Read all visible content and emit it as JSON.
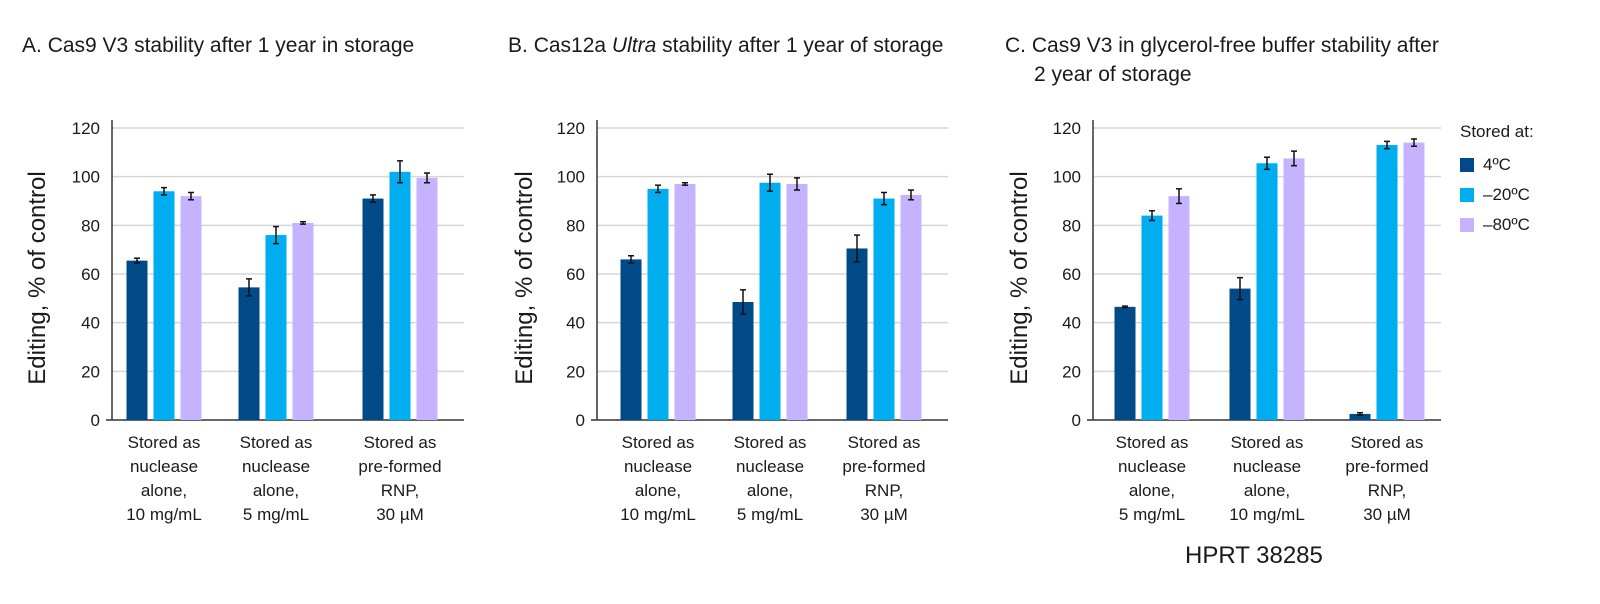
{
  "legend": {
    "title": "Stored at:",
    "items": [
      "4ºC",
      "–20ºC",
      "–80ºC"
    ],
    "colors": [
      "#004b87",
      "#00aeef",
      "#c5b3ff"
    ]
  },
  "footer_label": "HPRT 38285",
  "chart_data": [
    {
      "type": "bar",
      "title_letter": "A.",
      "title": "Cas9 V3 stability after 1 year in storage",
      "ylabel": "Editing, % of control",
      "ylim": [
        0,
        120
      ],
      "yticks": [
        0,
        20,
        40,
        60,
        80,
        100,
        120
      ],
      "grid": true,
      "categories": [
        [
          "Stored as",
          "nuclease",
          "alone,",
          "10 mg/mL"
        ],
        [
          "Stored as",
          "nuclease",
          "alone,",
          "5 mg/mL"
        ],
        [
          "Stored as",
          "pre-formed",
          "RNP,",
          "30 µM"
        ]
      ],
      "series": [
        {
          "name": "4ºC",
          "values": [
            65.5,
            54.5,
            91
          ],
          "errors": [
            1,
            3.5,
            1.5
          ]
        },
        {
          "name": "–20ºC",
          "values": [
            94,
            76,
            102
          ],
          "errors": [
            1.5,
            3.5,
            4.5
          ]
        },
        {
          "name": "–80ºC",
          "values": [
            92,
            81,
            99.5
          ],
          "errors": [
            1.5,
            0.5,
            2
          ]
        }
      ]
    },
    {
      "type": "bar",
      "title_letter": "B.",
      "title": "Cas12a",
      "title_italic": "Ultra",
      "title_rest": "stability after 1 year of storage",
      "ylabel": "Editing, % of control",
      "ylim": [
        0,
        120
      ],
      "yticks": [
        0,
        20,
        40,
        60,
        80,
        100,
        120
      ],
      "grid": true,
      "categories": [
        [
          "Stored as",
          "nuclease",
          "alone,",
          "10 mg/mL"
        ],
        [
          "Stored as",
          "nuclease",
          "alone,",
          "5 mg/mL"
        ],
        [
          "Stored as",
          "pre-formed",
          "RNP,",
          "30 µM"
        ]
      ],
      "series": [
        {
          "name": "4ºC",
          "values": [
            66,
            48.5,
            70.5
          ],
          "errors": [
            1.5,
            5,
            5.5
          ]
        },
        {
          "name": "–20ºC",
          "values": [
            95,
            97.5,
            91
          ],
          "errors": [
            1.5,
            3.5,
            2.5
          ]
        },
        {
          "name": "–80ºC",
          "values": [
            97,
            97,
            92.5
          ],
          "errors": [
            0.5,
            2.5,
            2
          ]
        }
      ]
    },
    {
      "type": "bar",
      "title_letter": "C.",
      "title": "Cas9 V3 in glycerol-free buffer stability after",
      "title_line2": "2 year of storage",
      "ylabel": "Editing, % of control",
      "ylim": [
        0,
        120
      ],
      "yticks": [
        0,
        20,
        40,
        60,
        80,
        100,
        120
      ],
      "grid": true,
      "categories": [
        [
          "Stored as",
          "nuclease",
          "alone,",
          "5 mg/mL"
        ],
        [
          "Stored as",
          "nuclease",
          "alone,",
          "10 mg/mL"
        ],
        [
          "Stored as",
          "pre-formed",
          "RNP,",
          "30 µM"
        ]
      ],
      "series": [
        {
          "name": "4ºC",
          "values": [
            46.5,
            54,
            2.5
          ],
          "errors": [
            0.3,
            4.5,
            0.5
          ]
        },
        {
          "name": "–20ºC",
          "values": [
            84,
            105.5,
            113
          ],
          "errors": [
            2,
            2.5,
            1.5
          ]
        },
        {
          "name": "–80ºC",
          "values": [
            92,
            107.5,
            114
          ],
          "errors": [
            3,
            3,
            1.5
          ]
        }
      ]
    }
  ]
}
